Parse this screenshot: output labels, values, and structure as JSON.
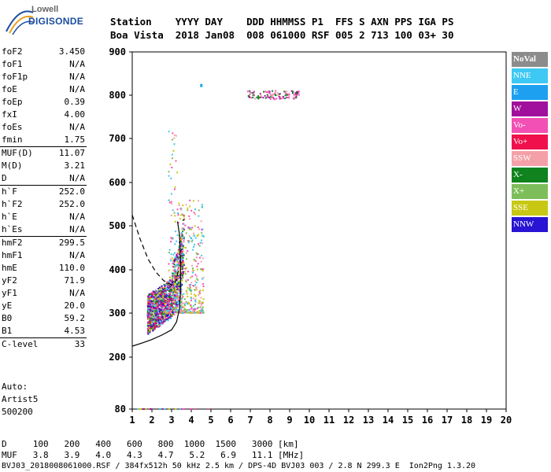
{
  "logo": {
    "brand": "Lowell",
    "product": "DIGISONDE"
  },
  "header": {
    "labels": [
      "Station",
      "YYYY",
      "DAY",
      "DDD",
      "HHMMSS",
      "P1",
      "FFS",
      "S",
      "AXN",
      "PPS",
      "IGA",
      "PS"
    ],
    "values": [
      "Boa Vista",
      "2018",
      "Jan08",
      "008",
      "061000",
      "RSF",
      "005",
      "2",
      "713",
      "100",
      "03+",
      "30"
    ]
  },
  "params": [
    {
      "name": "foF2",
      "value": "3.450"
    },
    {
      "name": "foF1",
      "value": "N/A"
    },
    {
      "name": "foF1p",
      "value": "N/A"
    },
    {
      "name": "foE",
      "value": "N/A"
    },
    {
      "name": "foEp",
      "value": "0.39"
    },
    {
      "name": "fxI",
      "value": "4.00"
    },
    {
      "name": "foEs",
      "value": "N/A"
    },
    {
      "name": "fmin",
      "value": "1.75"
    },
    {
      "name": "MUF(D)",
      "value": "11.07"
    },
    {
      "name": "M(D)",
      "value": "3.21"
    },
    {
      "name": "D",
      "value": "N/A"
    },
    {
      "name": "h`F",
      "value": "252.0"
    },
    {
      "name": "h`F2",
      "value": "252.0"
    },
    {
      "name": "h`E",
      "value": "N/A"
    },
    {
      "name": "h`Es",
      "value": "N/A"
    },
    {
      "name": "hmF2",
      "value": "299.5"
    },
    {
      "name": "hmF1",
      "value": "N/A"
    },
    {
      "name": "hmE",
      "value": "110.0"
    },
    {
      "name": "yF2",
      "value": "71.9"
    },
    {
      "name": "yF1",
      "value": "N/A"
    },
    {
      "name": "yE",
      "value": "20.0"
    },
    {
      "name": "B0",
      "value": "59.2"
    },
    {
      "name": "B1",
      "value": "4.53"
    },
    {
      "name": "C-level",
      "value": "33"
    }
  ],
  "auto": [
    "Auto:",
    "Artist5",
    "500200"
  ],
  "legend": [
    {
      "label": "NoVal",
      "color": "#8c8c8c"
    },
    {
      "label": "NNE",
      "color": "#3ec8f4"
    },
    {
      "label": "E",
      "color": "#1ea0f0"
    },
    {
      "label": "W",
      "color": "#a0109c"
    },
    {
      "label": "Vo-",
      "color": "#f250b4"
    },
    {
      "label": "Vo+",
      "color": "#f0104c"
    },
    {
      "label": "SSW",
      "color": "#f5a0a8"
    },
    {
      "label": "X-",
      "color": "#10821e"
    },
    {
      "label": "X+",
      "color": "#7ebe5a"
    },
    {
      "label": "SSE",
      "color": "#c8c814"
    },
    {
      "label": "NNW",
      "color": "#2814d2"
    }
  ],
  "footer": {
    "distance_label": "D",
    "distances": [
      "100",
      "200",
      "400",
      "600",
      "800",
      "1000",
      "1500",
      "3000",
      "[km]"
    ],
    "muf_label": "MUF",
    "mufs": [
      "3.8",
      "3.9",
      "4.0",
      "4.3",
      "4.7",
      "5.2",
      "6.9",
      "11.1",
      "[MHz]"
    ],
    "file_info": "BVJ03_2018008061000.RSF / 384fx512h 50 kHz 2.5 km / DPS-4D BVJ03 003 / 2.8 N 299.3 E  Ion2Png 1.3.20"
  },
  "chart_data": {
    "type": "scatter",
    "title": "",
    "xlabel": "",
    "ylabel": "",
    "xlim": [
      1,
      20
    ],
    "ylim": [
      80,
      900
    ],
    "y_scale": "nonlinear-virtual-height",
    "x_ticks": [
      1,
      2,
      3,
      4,
      5,
      6,
      7,
      8,
      9,
      10,
      11,
      12,
      13,
      14,
      15,
      16,
      17,
      18,
      19,
      20
    ],
    "y_ticks": [
      80,
      200,
      300,
      400,
      500,
      600,
      700,
      800,
      900
    ],
    "grid": false,
    "echo_clusters": [
      {
        "name": "F2 trace (o)",
        "x_range": [
          1.75,
          3.6
        ],
        "y_range": [
          252,
          460
        ],
        "colors": [
          "#a0109c",
          "#f250b4",
          "#f0104c",
          "#3ec8f4",
          "#c8c814",
          "#10821e",
          "#2814d2"
        ]
      },
      {
        "name": "F2 spread",
        "x_range": [
          2.8,
          4.6
        ],
        "y_range": [
          300,
          720
        ],
        "colors": [
          "#f250b4",
          "#3ec8f4",
          "#c8c814",
          "#7ebe5a",
          "#f5a0a8"
        ]
      },
      {
        "name": "multi-hop",
        "x_range": [
          6.8,
          9.5
        ],
        "y_range": [
          790,
          810
        ],
        "colors": [
          "#a0109c",
          "#f250b4",
          "#10821e",
          "#f5a0a8"
        ]
      },
      {
        "name": "low-height echoes",
        "x_range": [
          1.2,
          5.0
        ],
        "y_range": [
          80,
          85
        ],
        "colors": [
          "#a0109c",
          "#f250b4",
          "#3ec8f4",
          "#c8c814"
        ]
      }
    ],
    "profile_solid": [
      [
        1.0,
        225
      ],
      [
        1.5,
        232
      ],
      [
        2.0,
        240
      ],
      [
        2.5,
        250
      ],
      [
        3.0,
        262
      ],
      [
        3.25,
        280
      ],
      [
        3.4,
        310
      ],
      [
        3.45,
        350
      ],
      [
        3.45,
        420
      ],
      [
        3.4,
        480
      ],
      [
        3.3,
        510
      ]
    ],
    "profile_dashed": [
      [
        1.0,
        525
      ],
      [
        1.4,
        470
      ],
      [
        1.8,
        425
      ],
      [
        2.2,
        395
      ],
      [
        2.6,
        375
      ],
      [
        3.0,
        365
      ],
      [
        3.2,
        372
      ],
      [
        3.35,
        400
      ]
    ]
  }
}
